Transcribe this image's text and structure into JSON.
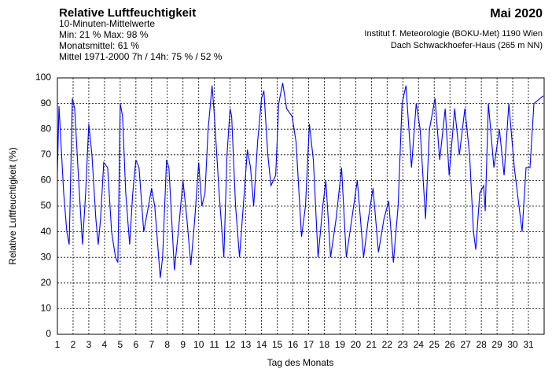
{
  "chart_data": {
    "type": "line",
    "title": "Relative Luftfeuchtigkeit",
    "subtitle_lines": [
      "10-Minuten-Mittelwerte",
      "Min:  21 %   Max:  98 %",
      "Monatsmittel:  61 %",
      "Mittel 1971-2000 7h / 14h:  75 % / 52 %"
    ],
    "period": "Mai 2020",
    "source_lines": [
      "Institut f. Meteorologie (BOKU-Met) 1190 Wien",
      "Dach Schwackhoefer-Haus (265 m NN)"
    ],
    "x_label": "Tag des Monats",
    "y_label": "Relative Luftfeuchtigkeit (%)",
    "xlim": [
      1,
      32
    ],
    "xticks": [
      1,
      2,
      3,
      4,
      5,
      6,
      7,
      8,
      9,
      10,
      11,
      12,
      13,
      14,
      15,
      16,
      17,
      18,
      19,
      20,
      21,
      22,
      23,
      24,
      25,
      26,
      27,
      28,
      29,
      30,
      31
    ],
    "ylim": [
      0,
      100
    ],
    "yticks": [
      0,
      10,
      20,
      30,
      40,
      50,
      60,
      70,
      80,
      90,
      100
    ],
    "grid": true,
    "x": [
      1.0,
      1.1,
      1.4,
      1.6,
      1.75,
      1.95,
      2.1,
      2.35,
      2.6,
      2.8,
      3.0,
      3.2,
      3.45,
      3.6,
      3.75,
      3.95,
      4.2,
      4.45,
      4.7,
      4.85,
      5.0,
      5.15,
      5.35,
      5.6,
      5.8,
      6.0,
      6.2,
      6.5,
      6.8,
      7.0,
      7.2,
      7.45,
      7.55,
      7.7,
      7.95,
      8.1,
      8.45,
      8.7,
      9.0,
      9.25,
      9.5,
      9.75,
      10.0,
      10.2,
      10.4,
      10.6,
      10.85,
      11.0,
      11.3,
      11.6,
      11.8,
      12.0,
      12.1,
      12.35,
      12.6,
      12.9,
      13.1,
      13.3,
      13.5,
      13.75,
      14.0,
      14.15,
      14.4,
      14.6,
      14.9,
      15.1,
      15.35,
      15.6,
      15.95,
      16.2,
      16.55,
      16.8,
      17.05,
      17.3,
      17.6,
      17.9,
      18.1,
      18.4,
      18.75,
      19.1,
      19.4,
      19.75,
      20.1,
      20.5,
      20.8,
      21.1,
      21.45,
      21.8,
      22.1,
      22.4,
      22.7,
      22.95,
      23.2,
      23.55,
      23.85,
      24.1,
      24.3,
      24.45,
      24.7,
      25.05,
      25.35,
      25.7,
      25.95,
      26.3,
      26.6,
      26.95,
      27.25,
      27.5,
      27.65,
      27.9,
      28.15,
      28.25,
      28.45,
      28.8,
      29.15,
      29.45,
      29.75,
      30.1,
      30.5,
      30.6,
      30.85,
      31.1,
      31.35,
      31.95
    ],
    "series": [
      {
        "name": "Relative Luftfeuchtigkeit",
        "color": "#0000ff",
        "values": [
          63,
          89,
          55,
          40,
          35,
          92,
          88,
          60,
          35,
          55,
          82,
          70,
          45,
          35,
          45,
          67,
          65,
          40,
          30,
          28,
          90,
          85,
          55,
          35,
          55,
          68,
          65,
          40,
          50,
          57,
          50,
          30,
          22,
          30,
          68,
          65,
          25,
          40,
          60,
          45,
          27,
          45,
          67,
          50,
          55,
          80,
          97,
          85,
          55,
          30,
          70,
          88,
          85,
          50,
          30,
          55,
          72,
          65,
          50,
          75,
          92,
          95,
          70,
          58,
          62,
          90,
          98,
          88,
          85,
          75,
          38,
          50,
          82,
          68,
          30,
          50,
          60,
          30,
          45,
          65,
          30,
          45,
          60,
          30,
          45,
          57,
          32,
          45,
          52,
          28,
          50,
          90,
          97,
          65,
          90,
          80,
          60,
          45,
          80,
          92,
          68,
          88,
          62,
          88,
          70,
          88,
          70,
          40,
          33,
          55,
          58,
          48,
          90,
          65,
          80,
          62,
          90,
          65,
          45,
          40,
          65,
          65,
          90,
          93
        ]
      }
    ]
  }
}
